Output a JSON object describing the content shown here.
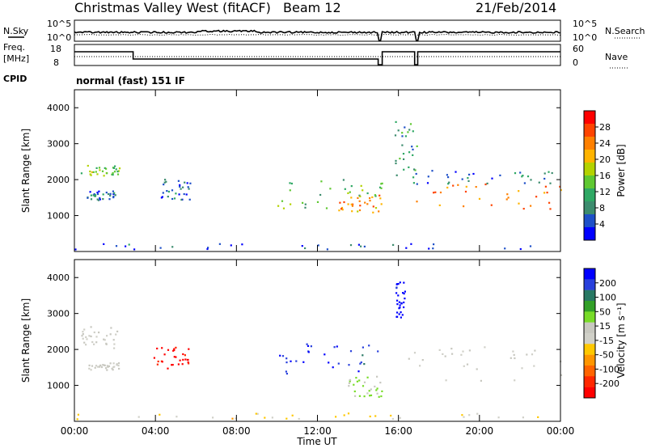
{
  "header": {
    "title": "Christmas Valley West (fitACF)",
    "beam": "Beam 12",
    "date": "21/Feb/2014"
  },
  "param_panel": {
    "nsky_label": "N.Sky",
    "nsearch_label": "N.Search",
    "noise_ticks": [
      "10^5",
      "10^0"
    ],
    "freq_label": "Freq.",
    "freq_unit": "[MHz]",
    "freq_ticks": [
      "18",
      "8"
    ],
    "nave_label": "Nave",
    "nave_ticks": [
      "60",
      "0"
    ],
    "cpid_label": "CPID",
    "cpid_value": "normal (fast) 151 IF"
  },
  "x_axis": {
    "label": "Time UT",
    "ticks": [
      "00:00",
      "04:00",
      "08:00",
      "12:00",
      "16:00",
      "20:00",
      "00:00"
    ]
  },
  "power_colorbar": {
    "label": "Power [dB]",
    "ticks": [
      "28",
      "24",
      "20",
      "16",
      "12",
      "8",
      "4"
    ],
    "colors": [
      "#ff0000",
      "#ff4400",
      "#ff8000",
      "#ffb400",
      "#b4d200",
      "#5fc832",
      "#2fa864",
      "#3c8c6e",
      "#1e50c8",
      "#0000ff"
    ]
  },
  "velocity_colorbar": {
    "label": "Velocity [m s⁻¹]",
    "ticks": [
      "200",
      "100",
      "50",
      "15",
      "-15",
      "-50",
      "-100",
      "-200"
    ],
    "colors": [
      "#0000ff",
      "#2840dc",
      "#287864",
      "#32a028",
      "#78dc28",
      "#c8c8c0",
      "#d0d0c8",
      "#ffc800",
      "#ff9600",
      "#ff6400",
      "#ff2800",
      "#ff0000"
    ]
  },
  "chart_data": [
    {
      "type": "heatmap",
      "title": "Power",
      "xlabel": "Time UT",
      "ylabel": "Slant Range [km]",
      "x_range_hours": [
        0,
        24
      ],
      "ylim": [
        0,
        4500
      ],
      "yticks": [
        1000,
        2000,
        3000,
        4000
      ],
      "colorbar": "Power [dB]",
      "clim": [
        0,
        30
      ],
      "regions": [
        {
          "t": [
            0.3,
            2.2
          ],
          "r": [
            2100,
            2450
          ],
          "v": 14
        },
        {
          "t": [
            0.6,
            2.2
          ],
          "r": [
            1450,
            1700
          ],
          "v": 5
        },
        {
          "t": [
            3.9,
            5.7
          ],
          "r": [
            1450,
            2050
          ],
          "v": 5
        },
        {
          "t": [
            10.0,
            15.2
          ],
          "r": [
            1200,
            2100
          ],
          "v": 12
        },
        {
          "t": [
            13.0,
            15.2
          ],
          "r": [
            1100,
            1600
          ],
          "v": 22
        },
        {
          "t": [
            15.8,
            16.9
          ],
          "r": [
            1900,
            3700
          ],
          "v": 10
        },
        {
          "t": [
            16.8,
            24.0
          ],
          "r": [
            1200,
            1900
          ],
          "v": 22
        },
        {
          "t": [
            16.8,
            24.0
          ],
          "r": [
            1900,
            2300
          ],
          "v": 6
        },
        {
          "t": [
            0.0,
            24.0
          ],
          "r": [
            80,
            250
          ],
          "v": 5
        }
      ]
    },
    {
      "type": "heatmap",
      "title": "Velocity",
      "xlabel": "Time UT",
      "ylabel": "Slant Range [km]",
      "x_range_hours": [
        0,
        24
      ],
      "ylim": [
        0,
        4500
      ],
      "yticks": [
        1000,
        2000,
        3000,
        4000
      ],
      "colorbar": "Velocity [m s⁻¹]",
      "clim": [
        -200,
        200
      ],
      "regions": [
        {
          "t": [
            0.3,
            2.2
          ],
          "r": [
            2050,
            2650
          ],
          "v": 0
        },
        {
          "t": [
            0.6,
            2.2
          ],
          "r": [
            1450,
            1650
          ],
          "v": 0
        },
        {
          "t": [
            3.9,
            5.7
          ],
          "r": [
            1450,
            2100
          ],
          "v": -180
        },
        {
          "t": [
            10.0,
            15.2
          ],
          "r": [
            1300,
            2200
          ],
          "v": 160
        },
        {
          "t": [
            13.5,
            15.2
          ],
          "r": [
            700,
            1300
          ],
          "v": 40
        },
        {
          "t": [
            15.8,
            16.3
          ],
          "r": [
            2900,
            3900
          ],
          "v": 190
        },
        {
          "t": [
            16.3,
            24.0
          ],
          "r": [
            1150,
            2100
          ],
          "v": 0
        },
        {
          "t": [
            0.0,
            24.0
          ],
          "r": [
            80,
            250
          ],
          "v": -40
        }
      ]
    }
  ]
}
